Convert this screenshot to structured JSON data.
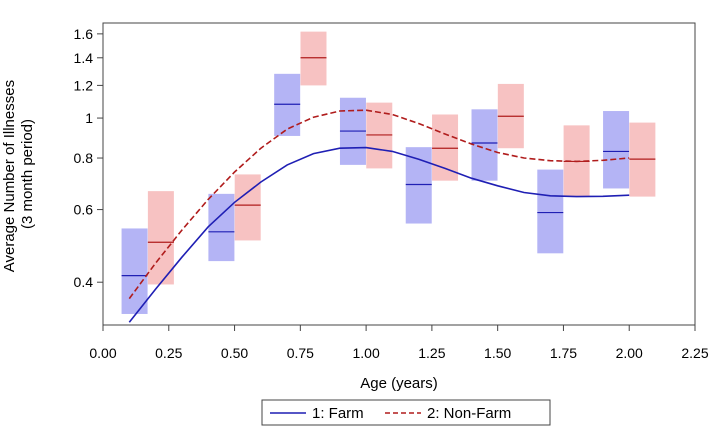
{
  "chart_data": {
    "type": "line",
    "xlabel": "Age (years)",
    "ylabel_lines": [
      "Average Number of Illnesses",
      "(3 month period)"
    ],
    "xlim": [
      0,
      2.25
    ],
    "ylim": [
      0.315,
      1.7
    ],
    "yscale": "log",
    "x_ticks": [
      0,
      0.25,
      0.5,
      0.75,
      1.0,
      1.25,
      1.5,
      1.75,
      2.0,
      2.25
    ],
    "x_tick_labels": [
      "0.00",
      "0.25",
      "0.50",
      "0.75",
      "1.00",
      "1.25",
      "1.50",
      "1.75",
      "2.00",
      "2.25"
    ],
    "y_ticks": [
      0.4,
      0.6,
      0.8,
      1.0,
      1.2,
      1.4,
      1.6
    ],
    "y_tick_labels": [
      "0.4",
      "0.6",
      "0.8",
      "1",
      "1.2",
      "1.4",
      "1.6"
    ],
    "grid": false,
    "legend_position": "bottom",
    "series": [
      {
        "name": "1: Farm",
        "color": "#1f1fb4",
        "band_color": "#b4b4f5",
        "line_style": "solid",
        "curve": {
          "x": [
            0.1,
            0.2,
            0.3,
            0.4,
            0.5,
            0.6,
            0.7,
            0.8,
            0.9,
            1.0,
            1.1,
            1.2,
            1.3,
            1.4,
            1.5,
            1.6,
            1.7,
            1.8,
            1.9,
            2.0
          ],
          "y": [
            0.32,
            0.385,
            0.46,
            0.545,
            0.625,
            0.7,
            0.77,
            0.82,
            0.845,
            0.848,
            0.83,
            0.795,
            0.755,
            0.715,
            0.685,
            0.66,
            0.648,
            0.645,
            0.646,
            0.65
          ]
        },
        "estimates": [
          {
            "x": 0.12,
            "mean": 0.415,
            "lower": 0.335,
            "upper": 0.54
          },
          {
            "x": 0.45,
            "mean": 0.53,
            "lower": 0.45,
            "upper": 0.655
          },
          {
            "x": 0.7,
            "mean": 1.08,
            "lower": 0.905,
            "upper": 1.28
          },
          {
            "x": 0.95,
            "mean": 0.93,
            "lower": 0.77,
            "upper": 1.12
          },
          {
            "x": 1.2,
            "mean": 0.69,
            "lower": 0.555,
            "upper": 0.85
          },
          {
            "x": 1.45,
            "mean": 0.87,
            "lower": 0.705,
            "upper": 1.05
          },
          {
            "x": 1.7,
            "mean": 0.59,
            "lower": 0.47,
            "upper": 0.75
          },
          {
            "x": 1.95,
            "mean": 0.83,
            "lower": 0.675,
            "upper": 1.04
          }
        ]
      },
      {
        "name": "2: Non-Farm",
        "color": "#b01c1c",
        "band_color": "#f7c2c2",
        "line_style": "dashed",
        "curve": {
          "x": [
            0.1,
            0.2,
            0.3,
            0.4,
            0.5,
            0.6,
            0.7,
            0.8,
            0.9,
            1.0,
            1.1,
            1.2,
            1.3,
            1.4,
            1.5,
            1.6,
            1.7,
            1.8,
            1.9,
            2.0
          ],
          "y": [
            0.365,
            0.445,
            0.535,
            0.635,
            0.74,
            0.845,
            0.94,
            1.005,
            1.04,
            1.045,
            1.02,
            0.97,
            0.915,
            0.865,
            0.825,
            0.8,
            0.788,
            0.785,
            0.79,
            0.8
          ]
        },
        "estimates": [
          {
            "x": 0.22,
            "mean": 0.5,
            "lower": 0.395,
            "upper": 0.665
          },
          {
            "x": 0.55,
            "mean": 0.615,
            "lower": 0.505,
            "upper": 0.73
          },
          {
            "x": 0.8,
            "mean": 1.4,
            "lower": 1.2,
            "upper": 1.62
          },
          {
            "x": 1.05,
            "mean": 0.91,
            "lower": 0.755,
            "upper": 1.09
          },
          {
            "x": 1.3,
            "mean": 0.845,
            "lower": 0.705,
            "upper": 1.02
          },
          {
            "x": 1.55,
            "mean": 1.01,
            "lower": 0.845,
            "upper": 1.21
          },
          {
            "x": 1.8,
            "mean": 0.785,
            "lower": 0.645,
            "upper": 0.96
          },
          {
            "x": 2.05,
            "mean": 0.795,
            "lower": 0.645,
            "upper": 0.975
          }
        ]
      }
    ]
  }
}
